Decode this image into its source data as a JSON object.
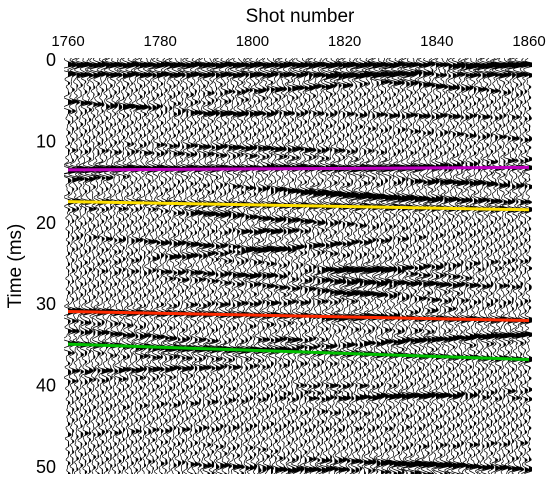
{
  "chart_data": {
    "type": "seismic",
    "xlabel": "Shot number",
    "ylabel": "Time (ms)",
    "xlim": [
      1760,
      1860
    ],
    "ylim": [
      0,
      50
    ],
    "y_inverted": true,
    "x_axis_position": "top",
    "x_ticks": [
      1760,
      1780,
      1800,
      1820,
      1840,
      1860
    ],
    "y_ticks": [
      0,
      10,
      20,
      30,
      40,
      50
    ],
    "trace_color": "#000000",
    "horizons": [
      {
        "color": "#c000c0",
        "x": [
          1760,
          1860
        ],
        "y": [
          13.5,
          13.2
        ]
      },
      {
        "color": "#ffe000",
        "x": [
          1760,
          1860
        ],
        "y": [
          17.4,
          18.4
        ]
      },
      {
        "color": "#ff2a00",
        "x": [
          1760,
          1860
        ],
        "y": [
          30.9,
          32.0
        ]
      },
      {
        "color": "#00c000",
        "x": [
          1760,
          1860
        ],
        "y": [
          34.9,
          36.8
        ]
      }
    ]
  }
}
